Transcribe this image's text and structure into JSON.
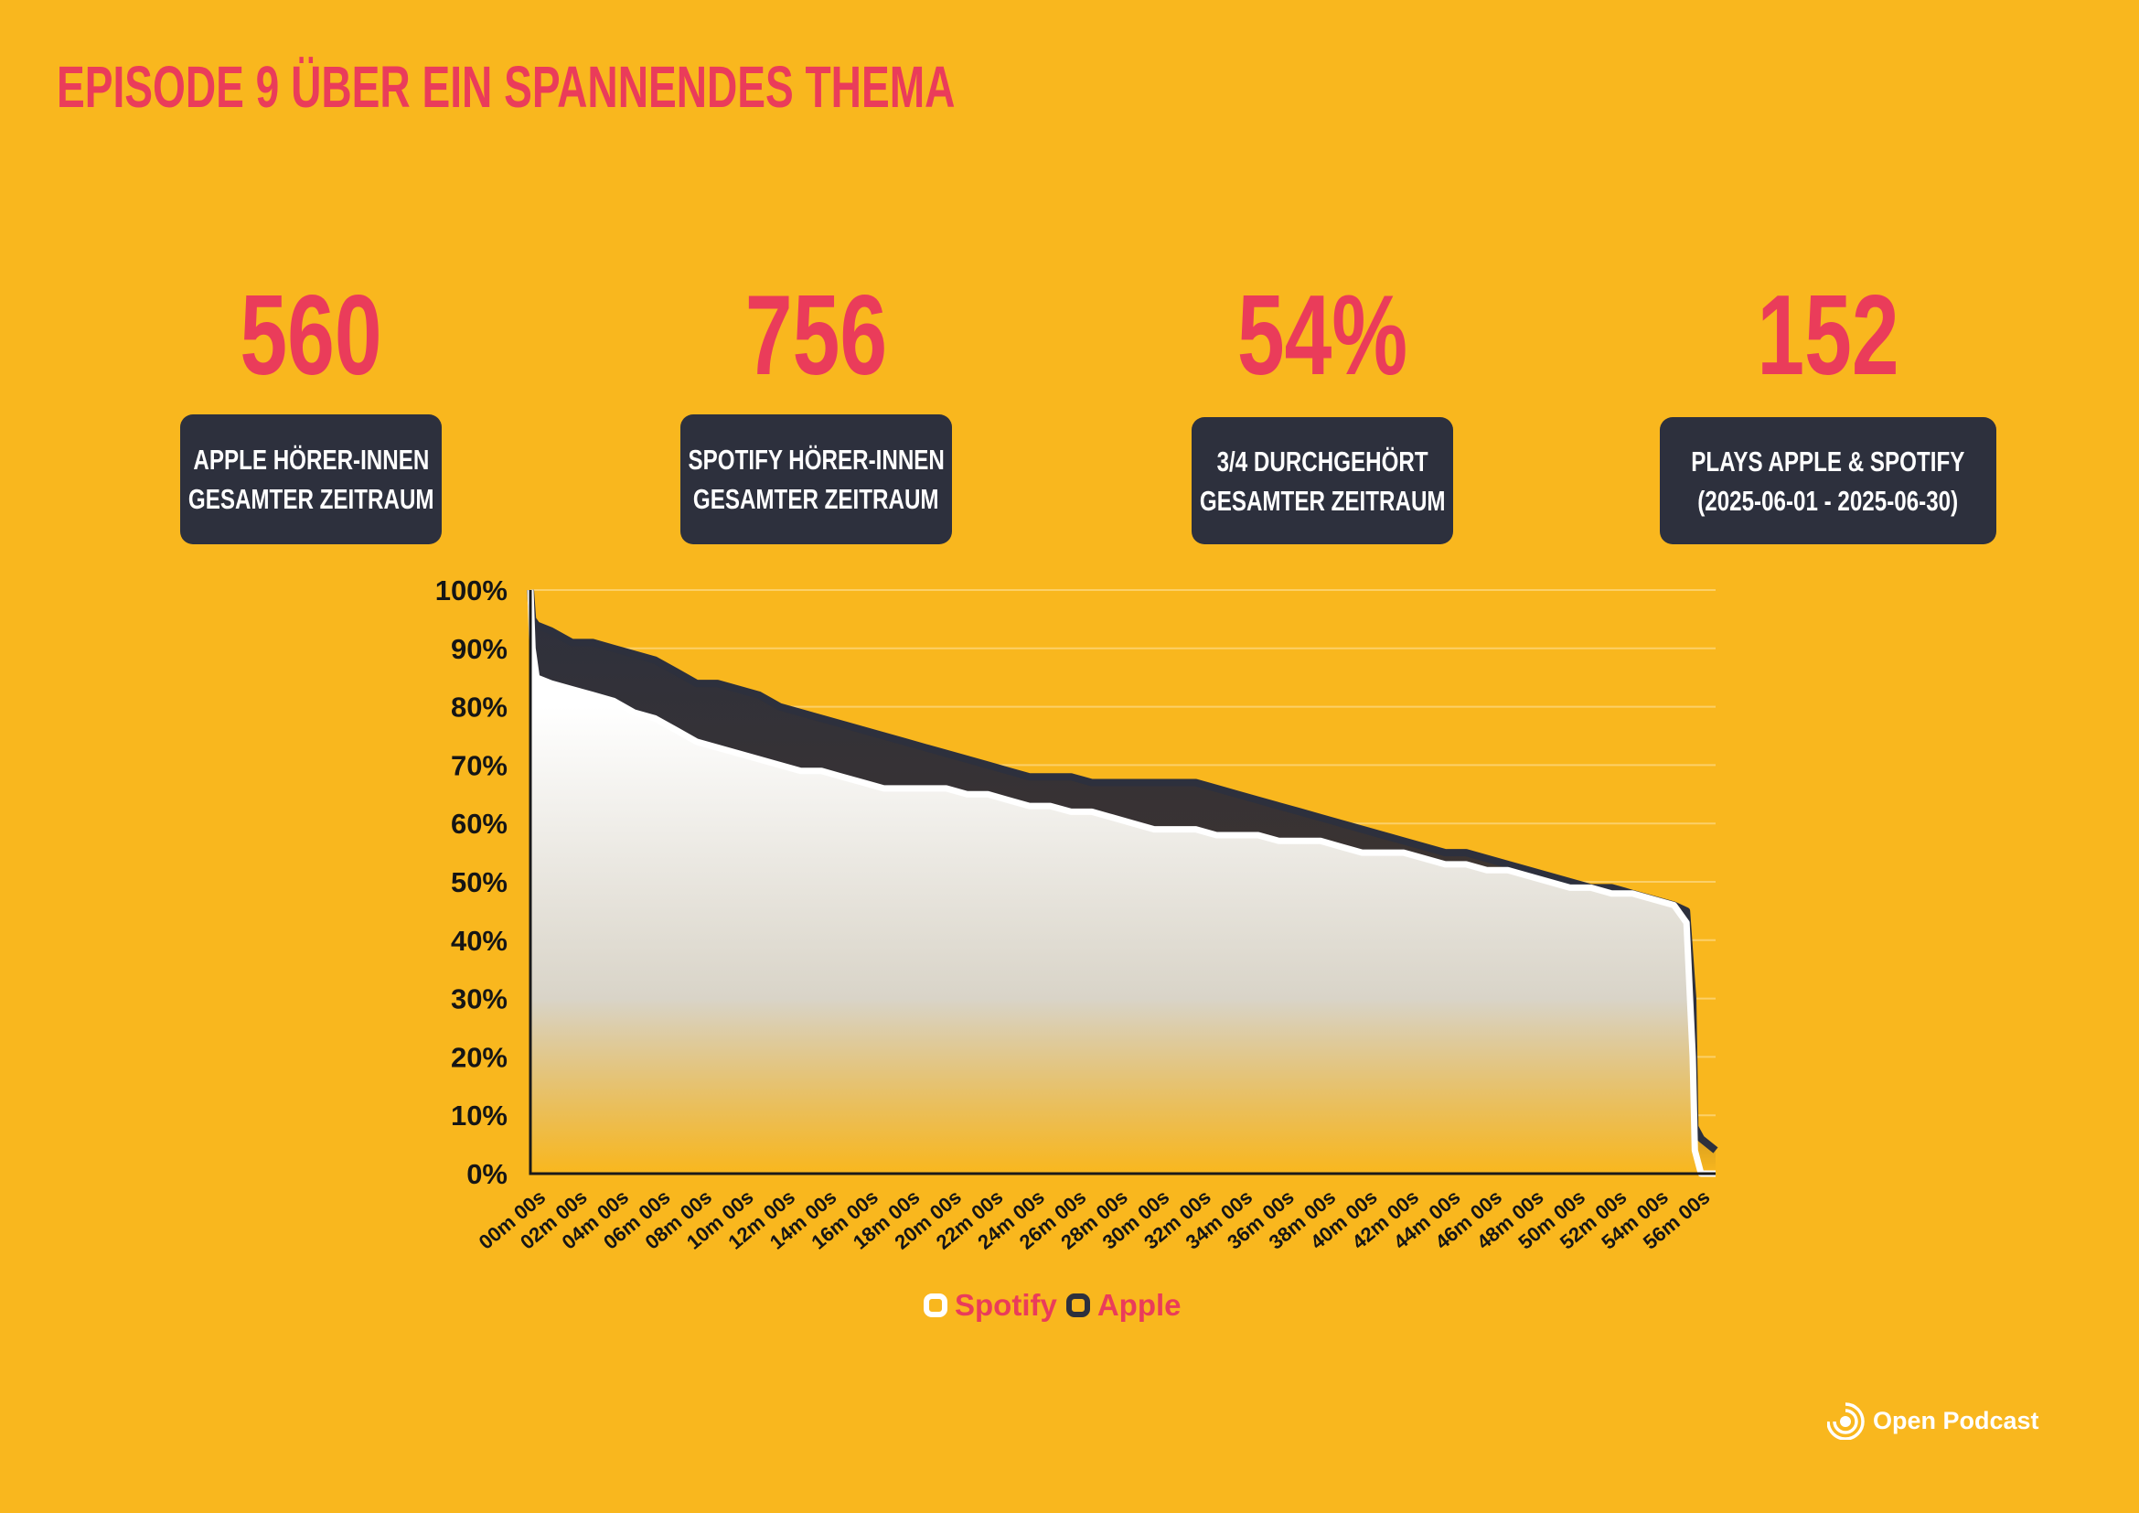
{
  "title": "EPISODE 9 ÜBER EIN SPANNENDES THEMA",
  "kpis": [
    {
      "value": "560",
      "line1": "APPLE HÖRER-INNEN",
      "line2": "GESAMTER ZEITRAUM"
    },
    {
      "value": "756",
      "line1": "SPOTIFY HÖRER-INNEN",
      "line2": "GESAMTER ZEITRAUM"
    },
    {
      "value": "54%",
      "line1": "3/4 DURCHGEHÖRT",
      "line2": "GESAMTER ZEITRAUM"
    },
    {
      "value": "152",
      "line1": "PLAYS APPLE & SPOTIFY",
      "line2": "(2025-06-01 - 2025-06-30)"
    }
  ],
  "legend": {
    "spotify": "Spotify",
    "apple": "Apple"
  },
  "brand": {
    "name": "Open Podcast",
    "icon": "open-podcast-logo-icon"
  },
  "colors": {
    "background": "#f9b71e",
    "accent": "#ea3c5a",
    "dark": "#2d303d",
    "spotify": "#ffffff",
    "apple": "#2d303d"
  },
  "chart_data": {
    "type": "area",
    "title": "",
    "xlabel": "",
    "ylabel": "",
    "ylim": [
      0,
      100
    ],
    "yticks": [
      "0%",
      "10%",
      "20%",
      "30%",
      "40%",
      "50%",
      "60%",
      "70%",
      "80%",
      "90%",
      "100%"
    ],
    "xticks": [
      "00m 00s",
      "02m 00s",
      "04m 00s",
      "06m 00s",
      "08m 00s",
      "10m 00s",
      "12m 00s",
      "14m 00s",
      "16m 00s",
      "18m 00s",
      "20m 00s",
      "22m 00s",
      "24m 00s",
      "26m 00s",
      "28m 00s",
      "30m 00s",
      "32m 00s",
      "34m 00s",
      "36m 00s",
      "38m 00s",
      "40m 00s",
      "42m 00s",
      "44m 00s",
      "46m 00s",
      "48m 00s",
      "50m 00s",
      "52m 00s",
      "54m 00s",
      "56m 00s"
    ],
    "x_unit": "minutes",
    "x": [
      0,
      0.1,
      0.3,
      1,
      2,
      3,
      4,
      5,
      6,
      7,
      8,
      9,
      10,
      11,
      12,
      13,
      14,
      15,
      16,
      17,
      18,
      19,
      20,
      21,
      22,
      23,
      24,
      25,
      26,
      27,
      28,
      29,
      30,
      31,
      32,
      33,
      34,
      35,
      36,
      37,
      38,
      39,
      40,
      41,
      42,
      43,
      44,
      45,
      46,
      47,
      48,
      49,
      50,
      51,
      52,
      53,
      54,
      55,
      55.6,
      55.9,
      56,
      56.3,
      57
    ],
    "series": [
      {
        "name": "Spotify",
        "color": "#ffffff",
        "values": [
          100,
          90,
          85,
          84,
          83,
          82,
          81,
          79,
          78,
          76,
          74,
          73,
          72,
          71,
          70,
          69,
          69,
          68,
          67,
          66,
          66,
          66,
          66,
          65,
          65,
          64,
          63,
          63,
          62,
          62,
          61,
          60,
          59,
          59,
          59,
          58,
          58,
          58,
          57,
          57,
          57,
          56,
          55,
          55,
          55,
          54,
          53,
          53,
          52,
          52,
          51,
          50,
          49,
          49,
          48,
          48,
          47,
          46,
          43,
          20,
          4,
          0,
          0
        ]
      },
      {
        "name": "Apple",
        "color": "#2d303d",
        "values": [
          100,
          95,
          94,
          93,
          91,
          91,
          90,
          89,
          88,
          86,
          84,
          84,
          83,
          82,
          80,
          79,
          78,
          77,
          76,
          75,
          74,
          73,
          72,
          71,
          70,
          69,
          68,
          68,
          68,
          67,
          67,
          67,
          67,
          67,
          67,
          66,
          65,
          64,
          63,
          62,
          61,
          60,
          59,
          58,
          57,
          56,
          55,
          55,
          54,
          53,
          52,
          51,
          50,
          49,
          49,
          48,
          47,
          46,
          45,
          30,
          8,
          6,
          4
        ]
      }
    ],
    "grid": true,
    "legend_position": "bottom-center"
  }
}
